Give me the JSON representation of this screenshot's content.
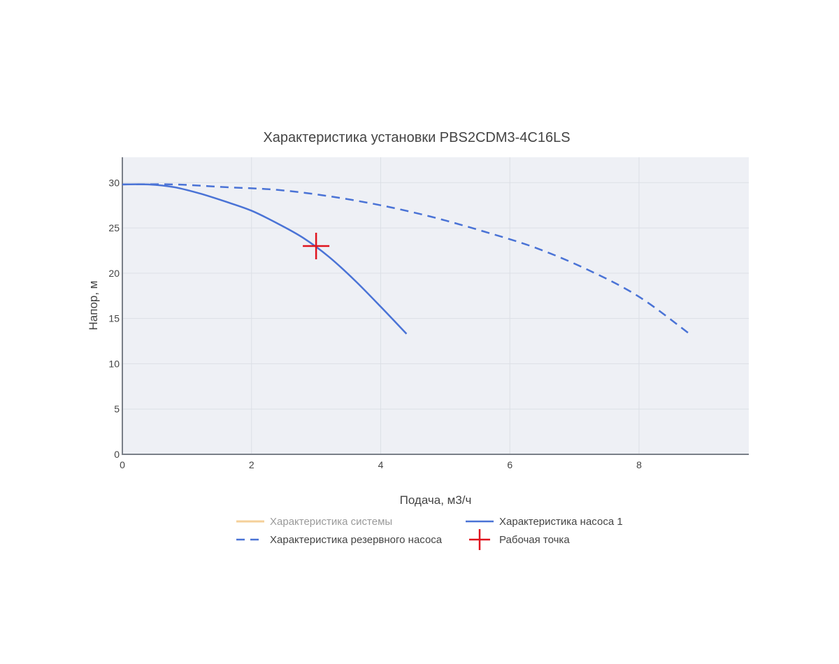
{
  "chart_data": {
    "type": "line",
    "title": "Характеристика установки PBS2CDM3-4C16LS",
    "xlabel": "Подача, м3/ч",
    "ylabel": "Напор, м",
    "xlim": [
      0,
      9.7
    ],
    "ylim": [
      0,
      32.8
    ],
    "x_ticks": [
      0,
      2,
      4,
      6,
      8
    ],
    "y_ticks": [
      0,
      5,
      10,
      15,
      20,
      25,
      30
    ],
    "grid": true,
    "legend_position": "bottom",
    "series": [
      {
        "name": "Характеристика системы",
        "style": "solid",
        "color": "#f5d09a",
        "legend_faded": true,
        "x": [],
        "y": []
      },
      {
        "name": "Характеристика насоса 1",
        "style": "solid",
        "color": "#4a73d6",
        "x": [
          0,
          0.4,
          0.8,
          1.2,
          1.6,
          2.0,
          2.4,
          2.8,
          3.2,
          3.6,
          4.0,
          4.4
        ],
        "y": [
          29.8,
          29.8,
          29.5,
          28.8,
          27.9,
          26.9,
          25.5,
          23.9,
          21.8,
          19.2,
          16.3,
          13.3
        ]
      },
      {
        "name": "Характеристика резервного насоса",
        "style": "dashed",
        "color": "#4a73d6",
        "x": [
          0,
          0.8,
          1.6,
          2.4,
          3.2,
          4.0,
          4.8,
          5.6,
          6.4,
          7.2,
          8.0,
          8.8
        ],
        "y": [
          29.8,
          29.8,
          29.5,
          29.2,
          28.5,
          27.5,
          26.2,
          24.6,
          22.8,
          20.4,
          17.4,
          13.2
        ]
      },
      {
        "name": "Рабочая точка",
        "style": "marker-cross",
        "color": "#e0141e",
        "x": [
          3.0
        ],
        "y": [
          23.0
        ]
      }
    ]
  }
}
